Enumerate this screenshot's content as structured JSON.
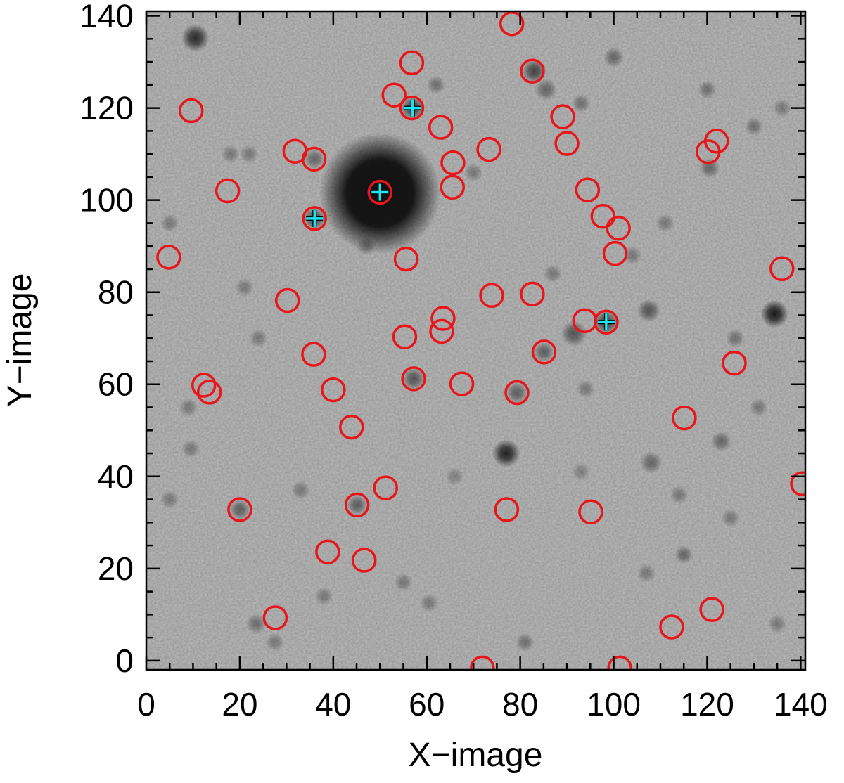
{
  "chart_data": {
    "type": "scatter",
    "title": "",
    "xlabel": "X−image",
    "ylabel": "Y−image",
    "xlim": [
      0,
      141
    ],
    "ylim": [
      -2,
      141
    ],
    "x_ticks": [
      0,
      20,
      40,
      60,
      80,
      100,
      120,
      140
    ],
    "y_ticks": [
      0,
      20,
      40,
      60,
      80,
      100,
      120,
      140
    ],
    "x_tick_labels": [
      "0",
      "20",
      "40",
      "60",
      "80",
      "100",
      "120",
      "140"
    ],
    "y_tick_labels": [
      "0",
      "20",
      "40",
      "60",
      "80",
      "100",
      "120",
      "140"
    ],
    "background": "grayscale sky image with stars",
    "colors": {
      "circles": "#e8161b",
      "crosses": "#19e6f0"
    },
    "series": [
      {
        "marker": "open-circle",
        "points": [
          [
            78.2,
            138.3
          ],
          [
            56.8,
            129.8
          ],
          [
            82.6,
            128.0
          ],
          [
            53.0,
            122.8
          ],
          [
            56.8,
            120.0
          ],
          [
            9.6,
            119.4
          ],
          [
            89.1,
            118.1
          ],
          [
            63.0,
            115.8
          ],
          [
            122.0,
            112.8
          ],
          [
            90.0,
            112.3
          ],
          [
            73.3,
            111.0
          ],
          [
            120.2,
            110.5
          ],
          [
            31.8,
            110.6
          ],
          [
            35.9,
            108.9
          ],
          [
            65.6,
            108.1
          ],
          [
            65.5,
            102.8
          ],
          [
            17.4,
            102.0
          ],
          [
            94.4,
            102.2
          ],
          [
            50.0,
            101.7
          ],
          [
            97.7,
            96.5
          ],
          [
            36.0,
            96.0
          ],
          [
            101.0,
            93.9
          ],
          [
            100.3,
            88.4
          ],
          [
            4.8,
            87.6
          ],
          [
            55.6,
            87.2
          ],
          [
            136.0,
            85.1
          ],
          [
            30.2,
            78.2
          ],
          [
            73.9,
            79.3
          ],
          [
            82.6,
            79.6
          ],
          [
            63.5,
            74.3
          ],
          [
            93.8,
            73.8
          ],
          [
            98.4,
            73.5
          ],
          [
            63.2,
            71.5
          ],
          [
            55.3,
            70.3
          ],
          [
            85.1,
            67.0
          ],
          [
            35.8,
            66.5
          ],
          [
            125.8,
            64.6
          ],
          [
            57.2,
            61.2
          ],
          [
            67.5,
            60.1
          ],
          [
            12.3,
            59.8
          ],
          [
            13.5,
            58.3
          ],
          [
            40.0,
            58.8
          ],
          [
            79.3,
            58.2
          ],
          [
            115.1,
            52.7
          ],
          [
            43.9,
            50.7
          ],
          [
            140.4,
            38.4
          ],
          [
            51.2,
            37.5
          ],
          [
            45.1,
            33.8
          ],
          [
            77.1,
            32.8
          ],
          [
            20.0,
            32.8
          ],
          [
            95.1,
            32.3
          ],
          [
            38.8,
            23.6
          ],
          [
            46.6,
            21.8
          ],
          [
            121.0,
            11.1
          ],
          [
            27.6,
            9.3
          ],
          [
            112.4,
            7.3
          ],
          [
            71.9,
            -1.6
          ],
          [
            101.3,
            -1.6
          ]
        ]
      },
      {
        "marker": "plus",
        "points": [
          [
            57.0,
            120.0
          ],
          [
            50.0,
            101.7
          ],
          [
            36.0,
            96.0
          ],
          [
            98.4,
            73.5
          ]
        ]
      }
    ],
    "stars": [
      [
        50.0,
        101.5,
        13.0,
        0.9
      ],
      [
        134.4,
        75.3,
        3.0,
        0.85
      ],
      [
        77.0,
        45.0,
        3.0,
        0.8
      ],
      [
        10.5,
        135.2,
        3.0,
        0.75
      ],
      [
        57.0,
        120.0,
        2.6,
        0.6
      ],
      [
        36.0,
        96.0,
        2.4,
        0.55
      ],
      [
        83.0,
        128.0,
        2.6,
        0.6
      ],
      [
        98.4,
        73.5,
        2.6,
        0.6
      ],
      [
        91.5,
        71.0,
        2.8,
        0.5
      ],
      [
        107.5,
        76.0,
        2.5,
        0.5
      ],
      [
        57.2,
        61.2,
        2.4,
        0.5
      ],
      [
        79.3,
        58.2,
        2.3,
        0.45
      ],
      [
        85.1,
        67.0,
        2.2,
        0.45
      ],
      [
        45.1,
        33.8,
        2.2,
        0.45
      ],
      [
        20.0,
        32.8,
        2.2,
        0.45
      ],
      [
        36.0,
        108.9,
        2.2,
        0.4
      ],
      [
        123.0,
        47.6,
        2.2,
        0.4
      ],
      [
        115.0,
        23.0,
        2.0,
        0.4
      ],
      [
        108.0,
        43.0,
        2.4,
        0.4
      ],
      [
        126.0,
        70.0,
        2.0,
        0.35
      ],
      [
        130.0,
        116.0,
        2.0,
        0.35
      ],
      [
        100.0,
        131.0,
        2.2,
        0.4
      ],
      [
        93.0,
        121.0,
        2.0,
        0.35
      ],
      [
        85.5,
        124.0,
        2.4,
        0.4
      ],
      [
        120.5,
        107.0,
        2.2,
        0.4
      ],
      [
        136.0,
        120.0,
        2.0,
        0.3
      ],
      [
        114.0,
        36.0,
        2.0,
        0.3
      ],
      [
        60.5,
        12.5,
        2.0,
        0.3
      ],
      [
        81.0,
        4.0,
        2.0,
        0.35
      ],
      [
        23.5,
        8.0,
        2.2,
        0.35
      ],
      [
        27.5,
        4.0,
        2.0,
        0.3
      ],
      [
        55.0,
        17.0,
        2.0,
        0.3
      ],
      [
        33.0,
        37.0,
        2.0,
        0.3
      ],
      [
        9.5,
        46.0,
        2.0,
        0.3
      ],
      [
        5.0,
        35.0,
        2.0,
        0.3
      ],
      [
        62.0,
        125.0,
        2.0,
        0.35
      ],
      [
        120.0,
        124.0,
        2.0,
        0.35
      ],
      [
        5.0,
        95.0,
        2.0,
        0.3
      ],
      [
        21.0,
        81.0,
        2.0,
        0.3
      ],
      [
        24.0,
        70.0,
        2.0,
        0.3
      ],
      [
        9.0,
        55.0,
        2.0,
        0.3
      ],
      [
        70.0,
        106.0,
        2.0,
        0.3
      ],
      [
        111.0,
        95.0,
        2.0,
        0.3
      ],
      [
        66.0,
        40.0,
        2.0,
        0.25
      ],
      [
        94.0,
        59.0,
        2.0,
        0.3
      ],
      [
        104.0,
        88.0,
        2.0,
        0.3
      ],
      [
        131.0,
        55.0,
        2.0,
        0.3
      ],
      [
        125.0,
        31.0,
        2.0,
        0.3
      ],
      [
        107.0,
        19.0,
        2.0,
        0.3
      ],
      [
        18.0,
        110.0,
        2.0,
        0.3
      ],
      [
        22.0,
        110.0,
        2.0,
        0.3
      ],
      [
        47.0,
        90.0,
        2.0,
        0.3
      ],
      [
        38.0,
        14.0,
        2.0,
        0.3
      ],
      [
        87.0,
        84.0,
        2.0,
        0.3
      ],
      [
        93.0,
        41.0,
        2.0,
        0.25
      ],
      [
        135.0,
        8.0,
        2.0,
        0.3
      ]
    ]
  }
}
